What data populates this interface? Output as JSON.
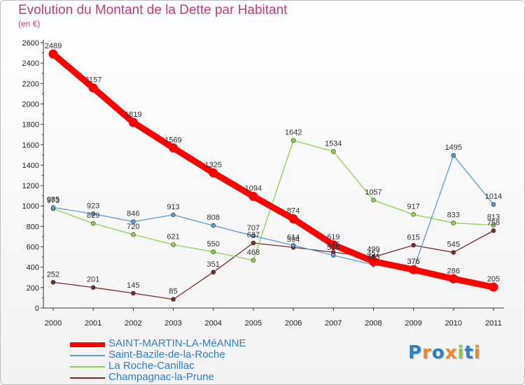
{
  "title": "Evolution du Montant de la Dette par Habitant",
  "subtitle": "(en €)",
  "logo": {
    "text": "Proxiti",
    "colors": [
      "#2e7fc9",
      "#e8892b",
      "#2e7fc9",
      "#e8892b",
      "#8cc63f",
      "#2e7fc9",
      "#e8892b"
    ]
  },
  "chart_data": {
    "type": "line",
    "title": "Evolution du Montant de la Dette par Habitant",
    "ylabel": "(en €)",
    "x": [
      "2000",
      "2001",
      "2002",
      "2003",
      "2004",
      "2005",
      "2006",
      "2007",
      "2008",
      "2009",
      "2010",
      "2011"
    ],
    "ylim": [
      0,
      2600
    ],
    "yticks": [
      0,
      200,
      400,
      600,
      800,
      1000,
      1200,
      1400,
      1600,
      1800,
      2000,
      2200,
      2400,
      2600
    ],
    "grid": false,
    "legend_position": "bottom-left",
    "series": [
      {
        "name": "SAINT-MARTIN-LA-MéANNE",
        "color": "#ff0000",
        "width": 9,
        "values": [
          2489,
          2157,
          1819,
          1569,
          1325,
          1094,
          874,
          619,
          457,
          376,
          286,
          205
        ]
      },
      {
        "name": "Saint-Bazile-de-la-Roche",
        "color": "#5b9bd5",
        "width": 1.3,
        "values": [
          985,
          923,
          846,
          913,
          808,
          707,
          614,
          516,
          423,
          376,
          1495,
          1014
        ]
      },
      {
        "name": "La Roche-Canillac",
        "color": "#8fd14f",
        "width": 1.3,
        "values": [
          973,
          829,
          720,
          621,
          550,
          468,
          1642,
          1534,
          1057,
          917,
          833,
          813
        ]
      },
      {
        "name": "Champagnac-la-Prune",
        "color": "#7b2a2a",
        "width": 1.3,
        "values": [
          252,
          201,
          145,
          85,
          351,
          637,
          594,
          546,
          499,
          615,
          545,
          758
        ]
      }
    ],
    "data_labels": [
      {
        "text": "2489",
        "series": 0,
        "i": 0
      },
      {
        "text": "2157",
        "series": 0,
        "i": 1
      },
      {
        "text": "1819",
        "series": 0,
        "i": 2
      },
      {
        "text": "1569",
        "series": 0,
        "i": 3
      },
      {
        "text": "1325",
        "series": 0,
        "i": 4
      },
      {
        "text": "1094",
        "series": 0,
        "i": 5
      },
      {
        "text": "874",
        "series": 0,
        "i": 6
      },
      {
        "text": "619",
        "series": 0,
        "i": 7
      },
      {
        "text": "457",
        "series": 0,
        "i": 8
      },
      {
        "text": "376",
        "series": 0,
        "i": 9
      },
      {
        "text": "286",
        "series": 0,
        "i": 10
      },
      {
        "text": "205",
        "series": 0,
        "i": 11
      },
      {
        "text": "985",
        "series": 1,
        "i": 0
      },
      {
        "text": "923",
        "series": 1,
        "i": 1
      },
      {
        "text": "846",
        "series": 1,
        "i": 2
      },
      {
        "text": "913",
        "series": 1,
        "i": 3
      },
      {
        "text": "808",
        "series": 1,
        "i": 4
      },
      {
        "text": "707",
        "series": 1,
        "i": 5
      },
      {
        "text": "614",
        "series": 1,
        "i": 6
      },
      {
        "text": "516",
        "series": 1,
        "i": 7
      },
      {
        "text": "423",
        "series": 1,
        "i": 8
      },
      {
        "text": "376",
        "series": 1,
        "i": 9
      },
      {
        "text": "1495",
        "series": 1,
        "i": 10
      },
      {
        "text": "1014",
        "series": 1,
        "i": 11
      },
      {
        "text": "973",
        "series": 2,
        "i": 0
      },
      {
        "text": "829",
        "series": 2,
        "i": 1
      },
      {
        "text": "720",
        "series": 2,
        "i": 2
      },
      {
        "text": "621",
        "series": 2,
        "i": 3
      },
      {
        "text": "550",
        "series": 2,
        "i": 4
      },
      {
        "text": "468",
        "series": 2,
        "i": 5
      },
      {
        "text": "1642",
        "series": 2,
        "i": 6
      },
      {
        "text": "1534",
        "series": 2,
        "i": 7
      },
      {
        "text": "1057",
        "series": 2,
        "i": 8
      },
      {
        "text": "917",
        "series": 2,
        "i": 9
      },
      {
        "text": "833",
        "series": 2,
        "i": 10
      },
      {
        "text": "813",
        "series": 2,
        "i": 11
      },
      {
        "text": "252",
        "series": 3,
        "i": 0
      },
      {
        "text": "201",
        "series": 3,
        "i": 1
      },
      {
        "text": "145",
        "series": 3,
        "i": 2
      },
      {
        "text": "85",
        "series": 3,
        "i": 3
      },
      {
        "text": "351",
        "series": 3,
        "i": 4
      },
      {
        "text": "637",
        "series": 3,
        "i": 5
      },
      {
        "text": "594",
        "series": 3,
        "i": 6
      },
      {
        "text": "546",
        "series": 3,
        "i": 7
      },
      {
        "text": "499",
        "series": 3,
        "i": 8
      },
      {
        "text": "615",
        "series": 3,
        "i": 9
      },
      {
        "text": "545",
        "series": 3,
        "i": 10
      },
      {
        "text": "758",
        "series": 3,
        "i": 11
      }
    ]
  }
}
